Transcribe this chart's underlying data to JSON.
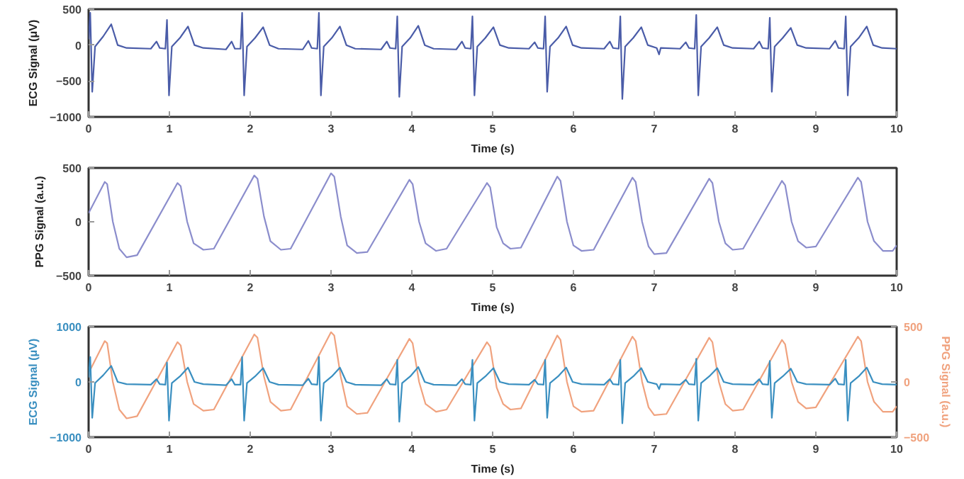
{
  "chart_data": [
    {
      "type": "line",
      "xlabel": "Time (s)",
      "ylabel": "ECG Signal (μV)",
      "xlim": [
        0,
        10
      ],
      "xticks": [
        0,
        1,
        2,
        3,
        4,
        5,
        6,
        7,
        8,
        9,
        10
      ],
      "ylim": [
        -1000,
        500
      ],
      "yticks": [
        -1000,
        -500,
        0,
        500
      ],
      "series": [
        {
          "color": "#4a5ca8",
          "x": [
            0,
            0.02,
            0.045,
            0.08,
            0.18,
            0.28,
            0.36,
            0.47,
            0.77,
            0.84,
            0.88,
            0.95,
            0.97,
            0.995,
            1.03,
            1.13,
            1.23,
            1.31,
            1.42,
            1.7,
            1.77,
            1.81,
            1.88,
            1.9,
            1.925,
            1.96,
            2.06,
            2.16,
            2.24,
            2.35,
            2.65,
            2.72,
            2.76,
            2.83,
            2.85,
            2.875,
            2.91,
            3.01,
            3.11,
            3.19,
            3.3,
            3.62,
            3.69,
            3.73,
            3.8,
            3.82,
            3.845,
            3.88,
            3.98,
            4.08,
            4.16,
            4.27,
            4.55,
            4.62,
            4.66,
            4.73,
            4.75,
            4.775,
            4.81,
            4.91,
            5.01,
            5.09,
            5.2,
            5.45,
            5.52,
            5.56,
            5.63,
            5.65,
            5.675,
            5.71,
            5.81,
            5.91,
            5.99,
            6.1,
            6.38,
            6.45,
            6.49,
            6.56,
            6.58,
            6.605,
            6.64,
            6.74,
            6.84,
            6.92,
            7.03,
            7.06,
            7.08,
            7.32,
            7.39,
            7.43,
            7.5,
            7.52,
            7.545,
            7.58,
            7.68,
            7.78,
            7.86,
            7.97,
            8.23,
            8.3,
            8.34,
            8.41,
            8.43,
            8.455,
            8.49,
            8.59,
            8.69,
            8.77,
            8.88,
            9.17,
            9.24,
            9.28,
            9.35,
            9.37,
            9.395,
            9.43,
            9.53,
            9.63,
            9.71,
            9.82,
            10
          ],
          "values": [
            80,
            450,
            -650,
            -20,
            120,
            290,
            0,
            -40,
            -50,
            50,
            -40,
            -50,
            350,
            -700,
            -20,
            100,
            260,
            0,
            -40,
            -60,
            50,
            -50,
            -50,
            450,
            -700,
            -20,
            100,
            250,
            0,
            -50,
            -60,
            60,
            -40,
            -50,
            450,
            -700,
            -20,
            100,
            260,
            0,
            -50,
            -60,
            50,
            -40,
            -50,
            400,
            -720,
            -20,
            100,
            270,
            0,
            -50,
            -60,
            50,
            -40,
            -50,
            400,
            -700,
            -20,
            100,
            250,
            0,
            -40,
            -50,
            40,
            -40,
            -50,
            400,
            -650,
            -20,
            100,
            260,
            0,
            -40,
            -50,
            50,
            -40,
            -50,
            400,
            -750,
            -20,
            100,
            250,
            0,
            -40,
            -130,
            -40,
            -50,
            40,
            -40,
            -50,
            420,
            -700,
            -20,
            100,
            250,
            0,
            -40,
            -50,
            50,
            -40,
            -50,
            380,
            -650,
            -20,
            100,
            240,
            0,
            -40,
            -50,
            60,
            -40,
            -50,
            400,
            -700,
            -20,
            100,
            260,
            0,
            -40,
            -50
          ]
        }
      ]
    },
    {
      "type": "line",
      "xlabel": "Time (s)",
      "ylabel": "PPG Signal (a.u.)",
      "xlim": [
        0,
        10
      ],
      "xticks": [
        0,
        1,
        2,
        3,
        4,
        5,
        6,
        7,
        8,
        9,
        10
      ],
      "ylim": [
        -500,
        500
      ],
      "yticks": [
        -500,
        0,
        500
      ],
      "series": [
        {
          "color": "#8b8dcc",
          "x": [
            0,
            0.2,
            0.23,
            0.3,
            0.38,
            0.47,
            0.6,
            1.1,
            1.14,
            1.22,
            1.3,
            1.42,
            1.55,
            2.05,
            2.09,
            2.17,
            2.25,
            2.38,
            2.5,
            3.0,
            3.04,
            3.12,
            3.2,
            3.32,
            3.45,
            3.97,
            4.01,
            4.09,
            4.17,
            4.3,
            4.43,
            4.93,
            4.97,
            5.05,
            5.13,
            5.22,
            5.35,
            5.8,
            5.84,
            5.92,
            6.0,
            6.1,
            6.25,
            6.73,
            6.77,
            6.85,
            6.93,
            7.0,
            7.15,
            7.68,
            7.72,
            7.8,
            7.88,
            7.97,
            8.1,
            8.58,
            8.62,
            8.7,
            8.78,
            8.88,
            9.0,
            9.52,
            9.56,
            9.64,
            9.72,
            9.83,
            9.95,
            10
          ],
          "values": [
            80,
            370,
            350,
            0,
            -250,
            -330,
            -310,
            360,
            330,
            0,
            -200,
            -260,
            -250,
            430,
            400,
            50,
            -180,
            -260,
            -250,
            450,
            420,
            50,
            -220,
            -290,
            -280,
            390,
            350,
            0,
            -200,
            -270,
            -250,
            360,
            320,
            -50,
            -200,
            -250,
            -240,
            420,
            380,
            0,
            -220,
            -270,
            -260,
            410,
            370,
            0,
            -230,
            -300,
            -290,
            400,
            360,
            0,
            -200,
            -260,
            -250,
            380,
            340,
            0,
            -180,
            -240,
            -230,
            410,
            370,
            0,
            -180,
            -270,
            -270,
            -220
          ]
        }
      ]
    },
    {
      "type": "line",
      "xlabel": "Time (s)",
      "ylabel": "ECG Signal (μV)",
      "y2label": "PPG Signal (a.u.)",
      "xlim": [
        0,
        10
      ],
      "xticks": [
        0,
        1,
        2,
        3,
        4,
        5,
        6,
        7,
        8,
        9,
        10
      ],
      "ylim": [
        -1000,
        1000
      ],
      "yticks": [
        -1000,
        0,
        1000
      ],
      "y2lim": [
        -500,
        500
      ],
      "y2ticks": [
        -500,
        0,
        500
      ],
      "series": [
        {
          "color": "#f0a27e",
          "axis": "y2",
          "x": [
            0,
            0.2,
            0.23,
            0.3,
            0.38,
            0.47,
            0.6,
            1.1,
            1.14,
            1.22,
            1.3,
            1.42,
            1.55,
            2.05,
            2.09,
            2.17,
            2.25,
            2.38,
            2.5,
            3.0,
            3.04,
            3.12,
            3.2,
            3.32,
            3.45,
            3.97,
            4.01,
            4.09,
            4.17,
            4.3,
            4.43,
            4.93,
            4.97,
            5.05,
            5.13,
            5.22,
            5.35,
            5.8,
            5.84,
            5.92,
            6.0,
            6.1,
            6.25,
            6.73,
            6.77,
            6.85,
            6.93,
            7.0,
            7.15,
            7.68,
            7.72,
            7.8,
            7.88,
            7.97,
            8.1,
            8.58,
            8.62,
            8.7,
            8.78,
            8.88,
            9.0,
            9.52,
            9.56,
            9.64,
            9.72,
            9.83,
            9.95,
            10
          ],
          "values": [
            80,
            370,
            350,
            0,
            -250,
            -330,
            -310,
            360,
            330,
            0,
            -200,
            -260,
            -250,
            430,
            400,
            50,
            -180,
            -260,
            -250,
            450,
            420,
            50,
            -220,
            -290,
            -280,
            390,
            350,
            0,
            -200,
            -270,
            -250,
            360,
            320,
            -50,
            -200,
            -250,
            -240,
            420,
            380,
            0,
            -220,
            -270,
            -260,
            410,
            370,
            0,
            -230,
            -300,
            -290,
            400,
            360,
            0,
            -200,
            -260,
            -250,
            380,
            340,
            0,
            -180,
            -240,
            -230,
            410,
            370,
            0,
            -180,
            -270,
            -270,
            -220
          ]
        },
        {
          "color": "#3a8fc0",
          "axis": "y",
          "x": [
            0,
            0.02,
            0.045,
            0.08,
            0.18,
            0.28,
            0.36,
            0.47,
            0.77,
            0.84,
            0.88,
            0.95,
            0.97,
            0.995,
            1.03,
            1.13,
            1.23,
            1.31,
            1.42,
            1.7,
            1.77,
            1.81,
            1.88,
            1.9,
            1.925,
            1.96,
            2.06,
            2.16,
            2.24,
            2.35,
            2.65,
            2.72,
            2.76,
            2.83,
            2.85,
            2.875,
            2.91,
            3.01,
            3.11,
            3.19,
            3.3,
            3.62,
            3.69,
            3.73,
            3.8,
            3.82,
            3.845,
            3.88,
            3.98,
            4.08,
            4.16,
            4.27,
            4.55,
            4.62,
            4.66,
            4.73,
            4.75,
            4.775,
            4.81,
            4.91,
            5.01,
            5.09,
            5.2,
            5.45,
            5.52,
            5.56,
            5.63,
            5.65,
            5.675,
            5.71,
            5.81,
            5.91,
            5.99,
            6.1,
            6.38,
            6.45,
            6.49,
            6.56,
            6.58,
            6.605,
            6.64,
            6.74,
            6.84,
            6.92,
            7.03,
            7.06,
            7.08,
            7.32,
            7.39,
            7.43,
            7.5,
            7.52,
            7.545,
            7.58,
            7.68,
            7.78,
            7.86,
            7.97,
            8.23,
            8.3,
            8.34,
            8.41,
            8.43,
            8.455,
            8.49,
            8.59,
            8.69,
            8.77,
            8.88,
            9.17,
            9.24,
            9.28,
            9.35,
            9.37,
            9.395,
            9.43,
            9.53,
            9.63,
            9.71,
            9.82,
            10
          ],
          "values": [
            80,
            450,
            -650,
            -20,
            120,
            290,
            0,
            -40,
            -50,
            50,
            -40,
            -50,
            350,
            -700,
            -20,
            100,
            260,
            0,
            -40,
            -60,
            50,
            -50,
            -50,
            450,
            -700,
            -20,
            100,
            250,
            0,
            -50,
            -60,
            60,
            -40,
            -50,
            450,
            -700,
            -20,
            100,
            260,
            0,
            -50,
            -60,
            50,
            -40,
            -50,
            400,
            -720,
            -20,
            100,
            270,
            0,
            -50,
            -60,
            50,
            -40,
            -50,
            400,
            -700,
            -20,
            100,
            250,
            0,
            -40,
            -50,
            40,
            -40,
            -50,
            400,
            -650,
            -20,
            100,
            260,
            0,
            -40,
            -50,
            50,
            -40,
            -50,
            400,
            -750,
            -20,
            100,
            250,
            0,
            -40,
            -130,
            -40,
            -50,
            40,
            -40,
            -50,
            420,
            -700,
            -20,
            100,
            250,
            0,
            -40,
            -50,
            50,
            -40,
            -50,
            380,
            -650,
            -20,
            100,
            240,
            0,
            -40,
            -50,
            60,
            -40,
            -50,
            400,
            -700,
            -20,
            100,
            260,
            0,
            -40,
            -50
          ]
        }
      ]
    }
  ]
}
